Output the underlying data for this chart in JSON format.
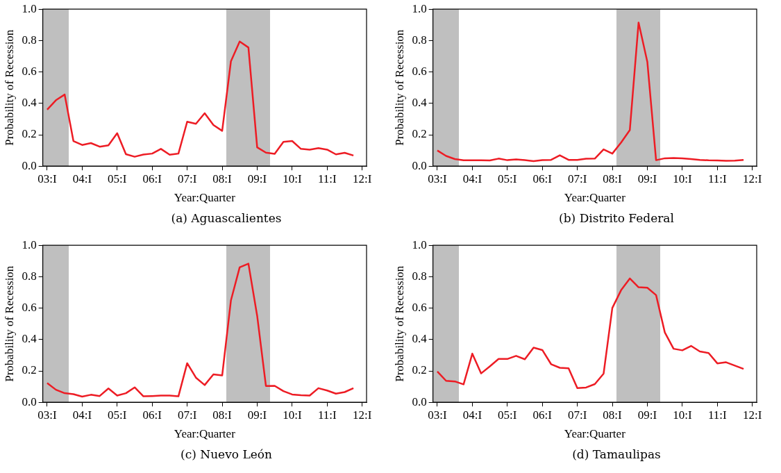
{
  "chart_data": [
    {
      "type": "line",
      "title": "(a)  Aguascalientes",
      "xlabel": "Year:Quarter",
      "ylabel": "Probability of Recession",
      "categories": [
        "03:I",
        null,
        null,
        null,
        "04:I",
        null,
        null,
        null,
        "05:I",
        null,
        null,
        null,
        "06:I",
        null,
        null,
        null,
        "07:I",
        null,
        null,
        null,
        "08:I",
        null,
        null,
        null,
        "09:I",
        null,
        null,
        null,
        "10:I",
        null,
        null,
        null,
        "11:I",
        null,
        null,
        null,
        "12:I"
      ],
      "ylim": [
        0,
        1
      ],
      "yticks": [
        {
          "value": 0,
          "label": "0.0"
        },
        {
          "value": 0.2,
          "label": "0.2"
        },
        {
          "value": 0.4,
          "label": "0.4"
        },
        {
          "value": 0.6,
          "label": "0.6"
        },
        {
          "value": 0.8,
          "label": "0.8"
        },
        {
          "value": 1,
          "label": "1.0"
        }
      ],
      "series": [
        {
          "color": "#ed1c24",
          "values": [
            0.36,
            0.42,
            0.456,
            0.16,
            0.135,
            0.147,
            0.124,
            0.133,
            0.21,
            0.076,
            0.06,
            0.074,
            0.08,
            0.11,
            0.073,
            0.08,
            0.283,
            0.27,
            0.337,
            0.262,
            0.225,
            0.668,
            0.794,
            0.756,
            0.12,
            0.086,
            0.078,
            0.155,
            0.16,
            0.11,
            0.105,
            0.115,
            0.105,
            0.075,
            0.085,
            0.068,
            null
          ]
        }
      ]
    },
    {
      "type": "line",
      "title": "(b)  Distrito Federal",
      "xlabel": "Year:Quarter",
      "ylabel": "Probability of Recession",
      "categories": [
        "03:I",
        null,
        null,
        null,
        "04:I",
        null,
        null,
        null,
        "05:I",
        null,
        null,
        null,
        "06:I",
        null,
        null,
        null,
        "07:I",
        null,
        null,
        null,
        "08:I",
        null,
        null,
        null,
        "09:I",
        null,
        null,
        null,
        "10:I",
        null,
        null,
        null,
        "11:I",
        null,
        null,
        null,
        "12:I"
      ],
      "ylim": [
        0,
        1
      ],
      "yticks": [
        {
          "value": 0,
          "label": "0.0"
        },
        {
          "value": 0.2,
          "label": "0.2"
        },
        {
          "value": 0.4,
          "label": "0.4"
        },
        {
          "value": 0.6,
          "label": "0.6"
        },
        {
          "value": 0.8,
          "label": "0.8"
        },
        {
          "value": 1,
          "label": "1.0"
        }
      ],
      "series": [
        {
          "color": "#ed1c24",
          "values": [
            0.1,
            0.065,
            0.045,
            0.037,
            0.037,
            0.037,
            0.036,
            0.048,
            0.038,
            0.043,
            0.038,
            0.032,
            0.038,
            0.04,
            0.069,
            0.04,
            0.04,
            0.047,
            0.048,
            0.107,
            0.08,
            0.15,
            0.23,
            0.915,
            0.665,
            0.038,
            0.05,
            0.052,
            0.05,
            0.045,
            0.04,
            0.037,
            0.036,
            0.034,
            0.035,
            0.04,
            null
          ]
        }
      ]
    },
    {
      "type": "line",
      "title": "(c)  Nuevo León",
      "xlabel": "Year:Quarter",
      "ylabel": "Probability of Recession",
      "categories": [
        "03:I",
        null,
        null,
        null,
        "04:I",
        null,
        null,
        null,
        "05:I",
        null,
        null,
        null,
        "06:I",
        null,
        null,
        null,
        "07:I",
        null,
        null,
        null,
        "08:I",
        null,
        null,
        null,
        "09:I",
        null,
        null,
        null,
        "10:I",
        null,
        null,
        null,
        "11:I",
        null,
        null,
        null,
        "12:I"
      ],
      "ylim": [
        0,
        1
      ],
      "yticks": [
        {
          "value": 0,
          "label": "0.0"
        },
        {
          "value": 0.2,
          "label": "0.2"
        },
        {
          "value": 0.4,
          "label": "0.4"
        },
        {
          "value": 0.6,
          "label": "0.6"
        },
        {
          "value": 0.8,
          "label": "0.8"
        },
        {
          "value": 1,
          "label": "1.0"
        }
      ],
      "series": [
        {
          "color": "#ed1c24",
          "values": [
            0.123,
            0.08,
            0.058,
            0.052,
            0.036,
            0.048,
            0.04,
            0.088,
            0.043,
            0.058,
            0.095,
            0.038,
            0.04,
            0.043,
            0.043,
            0.038,
            0.249,
            0.157,
            0.11,
            0.178,
            0.171,
            0.649,
            0.86,
            0.883,
            0.551,
            0.104,
            0.105,
            0.071,
            0.05,
            0.045,
            0.043,
            0.09,
            0.075,
            0.055,
            0.065,
            0.09,
            null
          ]
        }
      ]
    },
    {
      "type": "line",
      "title": "(d)  Tamaulipas",
      "xlabel": "Year:Quarter",
      "ylabel": "Probability of Recession",
      "categories": [
        "03:I",
        null,
        null,
        null,
        "04:I",
        null,
        null,
        null,
        "05:I",
        null,
        null,
        null,
        "06:I",
        null,
        null,
        null,
        "07:I",
        null,
        null,
        null,
        "08:I",
        null,
        null,
        null,
        "09:I",
        null,
        null,
        null,
        "10:I",
        null,
        null,
        null,
        "11:I",
        null,
        null,
        null,
        "12:I"
      ],
      "ylim": [
        0,
        1
      ],
      "yticks": [
        {
          "value": 0,
          "label": "0.0"
        },
        {
          "value": 0.2,
          "label": "0.2"
        },
        {
          "value": 0.4,
          "label": "0.4"
        },
        {
          "value": 0.6,
          "label": "0.6"
        },
        {
          "value": 0.8,
          "label": "0.8"
        },
        {
          "value": 1,
          "label": "1.0"
        }
      ],
      "series": [
        {
          "color": "#ed1c24",
          "values": [
            0.196,
            0.137,
            0.133,
            0.114,
            0.31,
            0.184,
            0.229,
            0.276,
            0.276,
            0.296,
            0.274,
            0.348,
            0.333,
            0.243,
            0.22,
            0.217,
            0.09,
            0.094,
            0.116,
            0.182,
            0.601,
            0.714,
            0.789,
            0.733,
            0.73,
            0.683,
            0.445,
            0.341,
            0.331,
            0.359,
            0.324,
            0.314,
            0.248,
            0.255,
            0.234,
            0.213,
            null
          ]
        }
      ]
    }
  ]
}
